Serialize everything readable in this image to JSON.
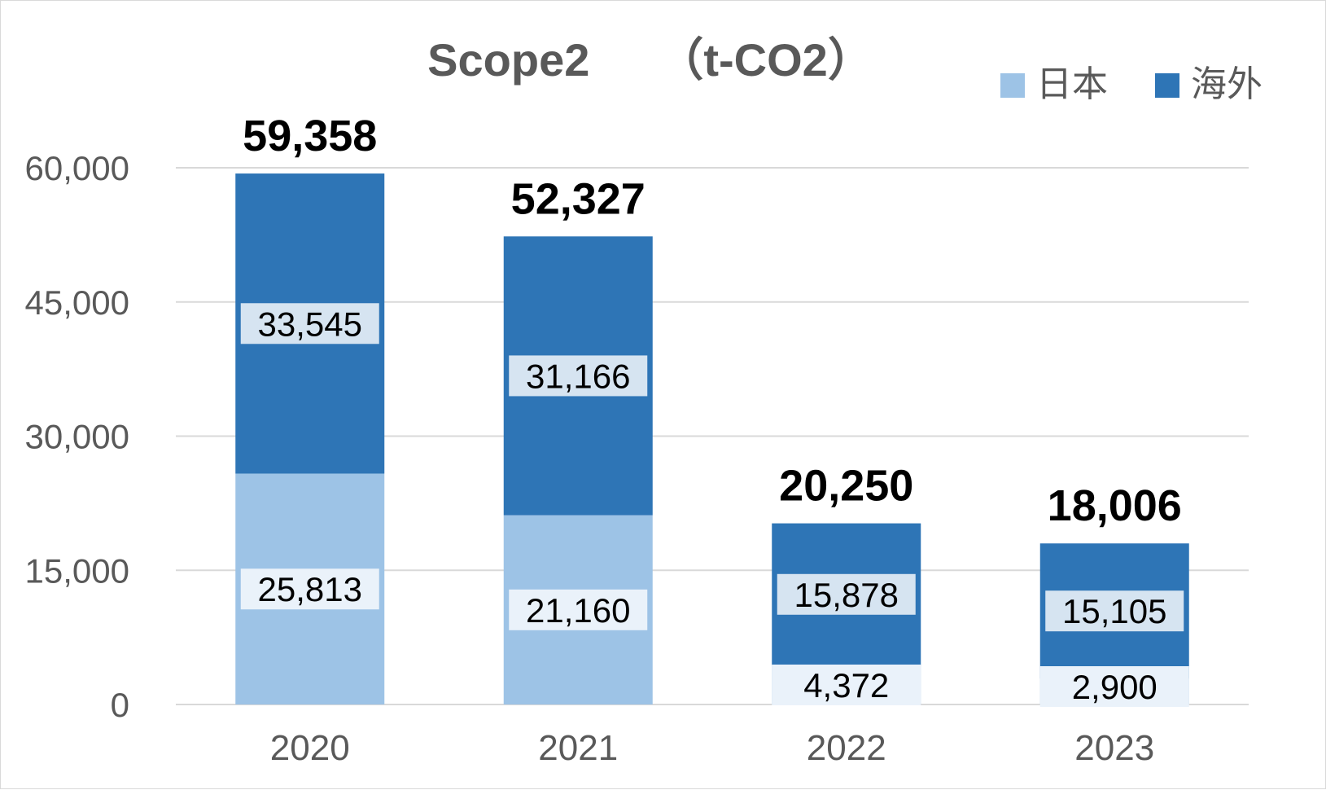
{
  "chart_data": {
    "type": "bar",
    "stacked": true,
    "title": "Scope2　　（t-CO2）",
    "categories": [
      "2020",
      "2021",
      "2022",
      "2023"
    ],
    "series": [
      {
        "name": "日本",
        "color": "#9dc3e6",
        "values": [
          25813,
          21160,
          4372,
          2900
        ]
      },
      {
        "name": "海外",
        "color": "#2e75b6",
        "values": [
          33545,
          31166,
          15878,
          15105
        ]
      }
    ],
    "totals": [
      "59,358",
      "52,327",
      "20,250",
      "18,006"
    ],
    "data_labels": {
      "日本": [
        "25,813",
        "21,160",
        "4,372",
        "2,900"
      ],
      "海外": [
        "33,545",
        "31,166",
        "15,878",
        "15,105"
      ]
    },
    "ylim": [
      0,
      60000
    ],
    "yticks": [
      0,
      15000,
      30000,
      45000,
      60000
    ],
    "ytick_labels": [
      "0",
      "15,000",
      "30,000",
      "45,000",
      "60,000"
    ],
    "grid": true,
    "legend_position": "top-right"
  }
}
